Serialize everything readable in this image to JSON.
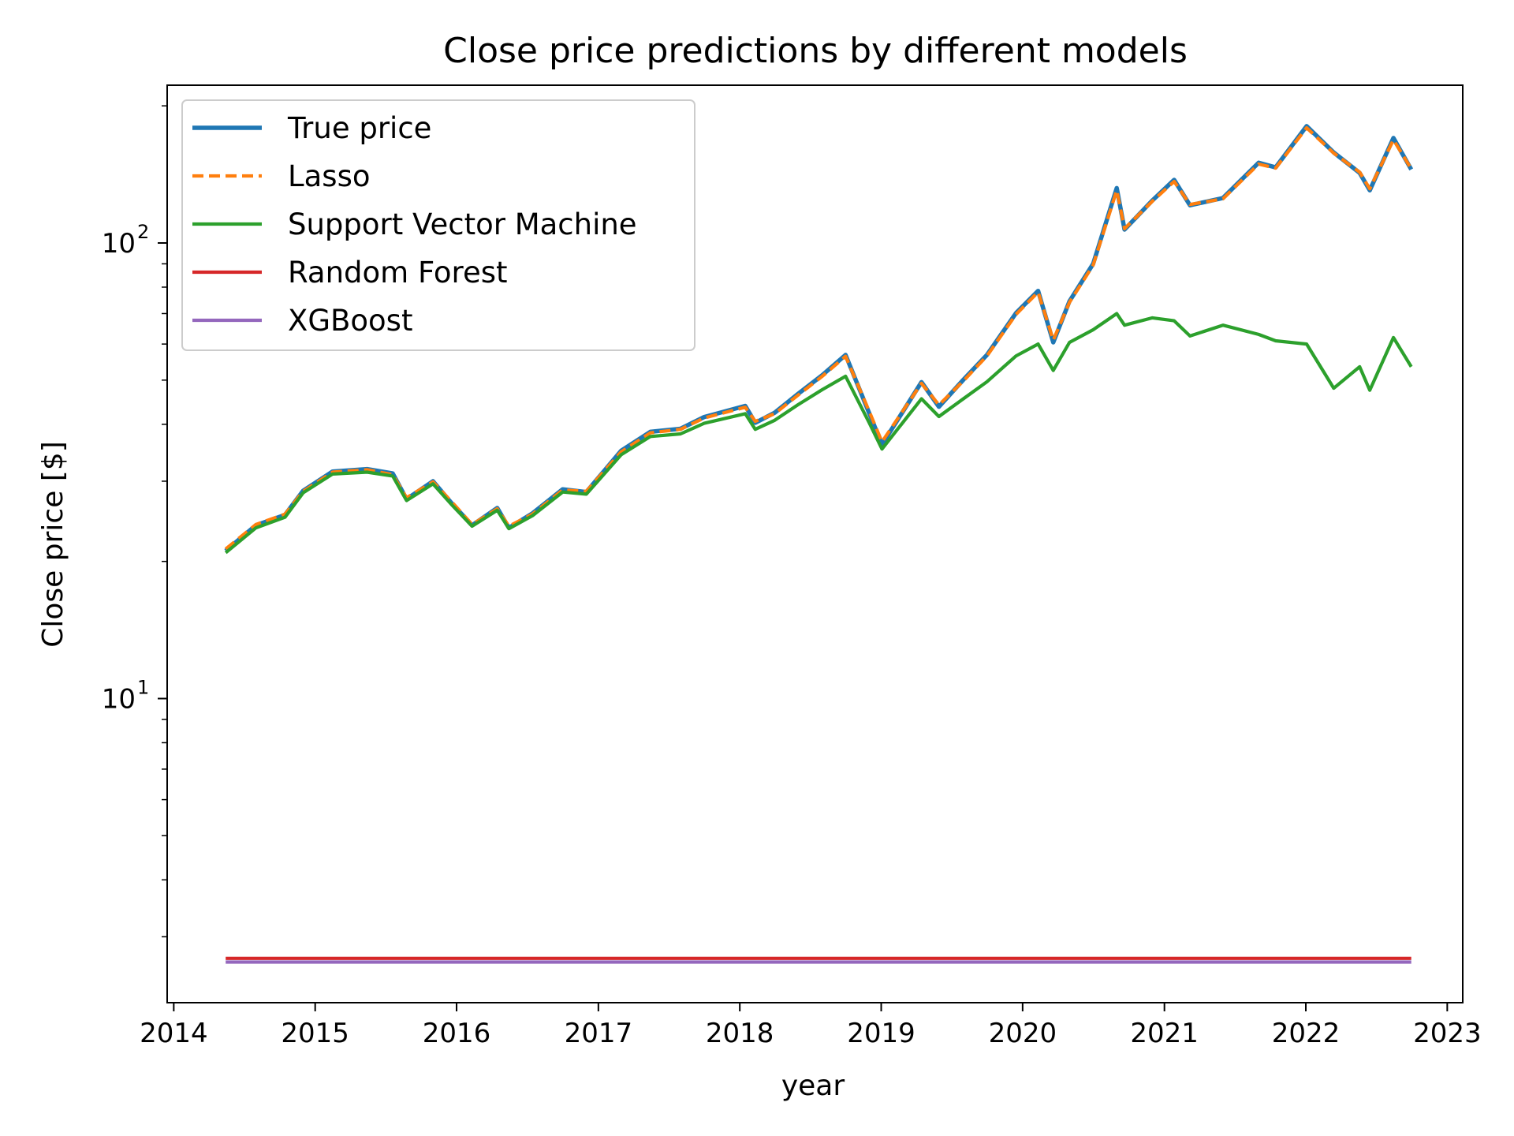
{
  "chart_data": {
    "type": "line",
    "title": "Close price predictions by different models",
    "xlabel": "year",
    "ylabel": "Close price [$]",
    "xlim": [
      "2013-12-15",
      "2023-02-10"
    ],
    "ylim": [
      2.15,
      222
    ],
    "yscale": "log",
    "grid": false,
    "legend_position": "top-left",
    "x_ticks": [
      {
        "value": "2014-01-01",
        "label": "2014"
      },
      {
        "value": "2015-01-01",
        "label": "2015"
      },
      {
        "value": "2016-01-01",
        "label": "2016"
      },
      {
        "value": "2017-01-01",
        "label": "2017"
      },
      {
        "value": "2018-01-01",
        "label": "2018"
      },
      {
        "value": "2019-01-01",
        "label": "2019"
      },
      {
        "value": "2020-01-01",
        "label": "2020"
      },
      {
        "value": "2021-01-01",
        "label": "2021"
      },
      {
        "value": "2022-01-01",
        "label": "2022"
      },
      {
        "value": "2023-01-01",
        "label": "2023"
      }
    ],
    "y_major_ticks": [
      {
        "value": 10,
        "base": "10",
        "exp": "1"
      },
      {
        "value": 100,
        "base": "10",
        "exp": "2"
      }
    ],
    "y_minor_ticks": [
      3,
      4,
      5,
      6,
      7,
      8,
      9,
      20,
      30,
      40,
      50,
      60,
      70,
      80,
      90,
      200
    ],
    "x": [
      "2014-05-15",
      "2014-08-01",
      "2014-10-15",
      "2014-12-01",
      "2015-02-15",
      "2015-05-15",
      "2015-07-20",
      "2015-08-25",
      "2015-11-01",
      "2015-12-20",
      "2016-02-10",
      "2016-04-15",
      "2016-05-15",
      "2016-07-15",
      "2016-10-01",
      "2016-12-01",
      "2017-03-01",
      "2017-05-15",
      "2017-08-01",
      "2017-10-01",
      "2018-01-15",
      "2018-02-10",
      "2018-04-01",
      "2018-06-01",
      "2018-08-01",
      "2018-10-01",
      "2018-12-01",
      "2019-01-03",
      "2019-04-15",
      "2019-05-30",
      "2019-08-01",
      "2019-10-01",
      "2019-12-15",
      "2020-02-10",
      "2020-03-20",
      "2020-05-01",
      "2020-07-01",
      "2020-08-31",
      "2020-09-20",
      "2020-12-01",
      "2021-01-26",
      "2021-03-08",
      "2021-06-01",
      "2021-09-01",
      "2021-10-15",
      "2022-01-03",
      "2022-03-14",
      "2022-05-20",
      "2022-06-15",
      "2022-08-15",
      "2022-09-30"
    ],
    "series": [
      {
        "name": "True price",
        "color": "#1f77b4",
        "dash": "solid",
        "values": [
          21.1,
          24.0,
          25.3,
          28.6,
          31.5,
          31.9,
          31.2,
          27.4,
          30.0,
          26.8,
          24.0,
          26.2,
          23.7,
          25.5,
          28.8,
          28.4,
          35.0,
          38.5,
          39.1,
          41.5,
          43.9,
          40.3,
          42.4,
          46.7,
          51.2,
          56.8,
          42.3,
          36.1,
          49.5,
          43.7,
          50.1,
          56.8,
          70.2,
          78.5,
          60.5,
          74.5,
          90.0,
          132.0,
          107.0,
          124.0,
          137.6,
          121.0,
          125.5,
          150.0,
          146.5,
          180.5,
          158.0,
          142.5,
          130.5,
          170.0,
          145.0
        ]
      },
      {
        "name": "Lasso",
        "color": "#ff7f0e",
        "dash": "dashed",
        "values": [
          21.3,
          24.1,
          25.4,
          28.5,
          31.4,
          31.8,
          31.0,
          27.6,
          29.9,
          27.0,
          24.1,
          26.1,
          23.9,
          25.4,
          28.7,
          28.5,
          34.8,
          38.3,
          39.0,
          41.3,
          43.6,
          40.6,
          42.2,
          46.4,
          50.9,
          56.4,
          42.7,
          36.6,
          49.2,
          44.1,
          49.8,
          56.5,
          69.7,
          78.0,
          61.2,
          74.1,
          89.4,
          130.5,
          107.5,
          123.5,
          136.5,
          121.5,
          125.0,
          149.0,
          146.0,
          179.0,
          157.5,
          143.0,
          131.5,
          168.5,
          145.5
        ]
      },
      {
        "name": "Support Vector Machine",
        "color": "#2ca02c",
        "dash": "solid",
        "values": [
          20.9,
          23.7,
          25.0,
          28.3,
          31.1,
          31.4,
          30.8,
          27.2,
          29.6,
          26.6,
          23.9,
          25.9,
          23.6,
          25.2,
          28.4,
          28.1,
          34.3,
          37.6,
          38.1,
          40.2,
          42.2,
          39.0,
          40.8,
          44.2,
          47.6,
          51.0,
          40.3,
          35.3,
          45.5,
          41.6,
          45.5,
          49.6,
          56.5,
          60.0,
          52.5,
          60.5,
          64.5,
          70.0,
          66.0,
          68.5,
          67.5,
          62.5,
          66.0,
          63.0,
          61.0,
          60.0,
          48.0,
          53.5,
          47.5,
          62.0,
          53.5
        ]
      },
      {
        "name": "Random Forest",
        "color": "#d62728",
        "dash": "solid",
        "values": [
          2.69,
          2.69,
          2.69,
          2.69,
          2.69,
          2.69,
          2.69,
          2.69,
          2.69,
          2.69,
          2.69,
          2.69,
          2.69,
          2.69,
          2.69,
          2.69,
          2.69,
          2.69,
          2.69,
          2.69,
          2.69,
          2.69,
          2.69,
          2.69,
          2.69,
          2.69,
          2.69,
          2.69,
          2.69,
          2.69,
          2.69,
          2.69,
          2.69,
          2.69,
          2.69,
          2.69,
          2.69,
          2.69,
          2.69,
          2.69,
          2.69,
          2.69,
          2.69,
          2.69,
          2.69,
          2.69,
          2.69,
          2.69,
          2.69,
          2.69,
          2.69
        ]
      },
      {
        "name": "XGBoost",
        "color": "#9467bd",
        "dash": "solid",
        "values": [
          2.64,
          2.64,
          2.64,
          2.64,
          2.64,
          2.64,
          2.64,
          2.64,
          2.64,
          2.64,
          2.64,
          2.64,
          2.64,
          2.64,
          2.64,
          2.64,
          2.64,
          2.64,
          2.64,
          2.64,
          2.64,
          2.64,
          2.64,
          2.64,
          2.64,
          2.64,
          2.64,
          2.64,
          2.64,
          2.64,
          2.64,
          2.64,
          2.64,
          2.64,
          2.64,
          2.64,
          2.64,
          2.64,
          2.64,
          2.64,
          2.64,
          2.64,
          2.64,
          2.64,
          2.64,
          2.64,
          2.64,
          2.64,
          2.64,
          2.64,
          2.64
        ]
      }
    ]
  }
}
